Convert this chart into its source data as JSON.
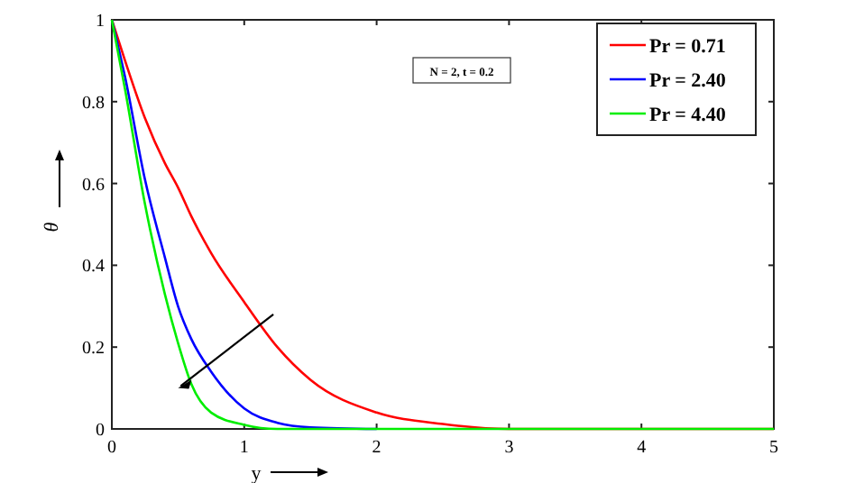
{
  "chart_data": {
    "type": "line",
    "xlabel": "y",
    "ylabel": "θ",
    "x": [
      0,
      0.1,
      0.25,
      0.4,
      0.5,
      0.6,
      0.75,
      1,
      1.25,
      1.5,
      2,
      2.5,
      3,
      4,
      5
    ],
    "series": [
      {
        "name": "Pr = 0.71",
        "color": "#ff0000",
        "values": [
          1,
          0.9,
          0.76,
          0.65,
          0.59,
          0.52,
          0.43,
          0.31,
          0.2,
          0.12,
          0.04,
          0.012,
          0,
          0,
          0
        ]
      },
      {
        "name": "Pr = 2.40",
        "color": "#0000ff",
        "values": [
          1,
          0.86,
          0.61,
          0.42,
          0.3,
          0.22,
          0.14,
          0.05,
          0.015,
          0.004,
          0,
          null,
          null,
          null,
          null
        ]
      },
      {
        "name": "Pr = 4.40",
        "color": "#00ee00",
        "values": [
          1,
          0.83,
          0.55,
          0.33,
          0.21,
          0.11,
          0.04,
          0.01,
          0,
          0,
          0,
          0,
          0,
          0,
          0
        ]
      }
    ],
    "xlim": [
      0,
      5
    ],
    "ylim": [
      0,
      1
    ],
    "xticks": [
      0,
      1,
      2,
      3,
      4,
      5
    ],
    "yticks": [
      0,
      0.2,
      0.4,
      0.6,
      0.8,
      1
    ],
    "annotations": [
      "N = 2, t = 0.2"
    ],
    "legend": "top right",
    "grid": false,
    "marker": "none",
    "line_style": "solid"
  }
}
